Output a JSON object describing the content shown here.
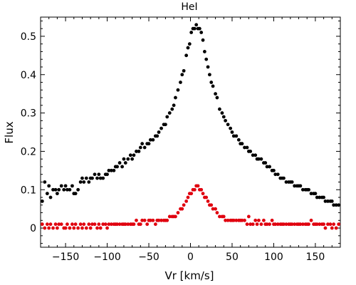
{
  "chart_data": {
    "type": "scatter",
    "title": "HeI",
    "xlabel": "Vr [km/s]",
    "ylabel": "Flux",
    "xlim": [
      -180,
      180
    ],
    "ylim": [
      -0.05,
      0.55
    ],
    "xticks": [
      -150,
      -100,
      -50,
      0,
      50,
      100,
      150
    ],
    "xtick_labels": [
      "−150",
      "−100",
      "−50",
      "0",
      "50",
      "100",
      "150"
    ],
    "yticks": [
      0,
      0.1,
      0.2,
      0.3,
      0.4,
      0.5
    ],
    "ytick_labels": [
      "0",
      "0.1",
      "0.2",
      "0.3",
      "0.4",
      "0.5"
    ],
    "grid": false,
    "series": [
      {
        "color": "#000000",
        "points": [
          [
            -178,
            0.07
          ],
          [
            -175,
            0.12
          ],
          [
            -172,
            0.09
          ],
          [
            -170,
            0.11
          ],
          [
            -168,
            0.08
          ],
          [
            -165,
            0.1
          ],
          [
            -162,
            0.1
          ],
          [
            -160,
            0.09
          ],
          [
            -158,
            0.1
          ],
          [
            -155,
            0.11
          ],
          [
            -152,
            0.1
          ],
          [
            -150,
            0.11
          ],
          [
            -148,
            0.1
          ],
          [
            -145,
            0.1
          ],
          [
            -142,
            0.11
          ],
          [
            -140,
            0.09
          ],
          [
            -138,
            0.09
          ],
          [
            -135,
            0.1
          ],
          [
            -132,
            0.12
          ],
          [
            -130,
            0.13
          ],
          [
            -128,
            0.12
          ],
          [
            -125,
            0.13
          ],
          [
            -122,
            0.12
          ],
          [
            -120,
            0.13
          ],
          [
            -118,
            0.13
          ],
          [
            -115,
            0.14
          ],
          [
            -112,
            0.13
          ],
          [
            -110,
            0.14
          ],
          [
            -108,
            0.13
          ],
          [
            -105,
            0.13
          ],
          [
            -102,
            0.14
          ],
          [
            -100,
            0.14
          ],
          [
            -98,
            0.15
          ],
          [
            -95,
            0.15
          ],
          [
            -92,
            0.15
          ],
          [
            -90,
            0.16
          ],
          [
            -88,
            0.16
          ],
          [
            -85,
            0.17
          ],
          [
            -82,
            0.16
          ],
          [
            -80,
            0.18
          ],
          [
            -78,
            0.17
          ],
          [
            -75,
            0.18
          ],
          [
            -72,
            0.19
          ],
          [
            -70,
            0.18
          ],
          [
            -68,
            0.19
          ],
          [
            -65,
            0.2
          ],
          [
            -62,
            0.2
          ],
          [
            -60,
            0.21
          ],
          [
            -58,
            0.22
          ],
          [
            -55,
            0.21
          ],
          [
            -52,
            0.22
          ],
          [
            -50,
            0.22
          ],
          [
            -48,
            0.23
          ],
          [
            -45,
            0.23
          ],
          [
            -42,
            0.24
          ],
          [
            -40,
            0.24
          ],
          [
            -38,
            0.25
          ],
          [
            -35,
            0.26
          ],
          [
            -32,
            0.27
          ],
          [
            -30,
            0.27
          ],
          [
            -28,
            0.29
          ],
          [
            -25,
            0.3
          ],
          [
            -22,
            0.31
          ],
          [
            -20,
            0.32
          ],
          [
            -18,
            0.34
          ],
          [
            -15,
            0.36
          ],
          [
            -12,
            0.38
          ],
          [
            -10,
            0.4
          ],
          [
            -8,
            0.41
          ],
          [
            -5,
            0.45
          ],
          [
            -3,
            0.47
          ],
          [
            -1,
            0.48
          ],
          [
            1,
            0.51
          ],
          [
            3,
            0.52
          ],
          [
            5,
            0.52
          ],
          [
            7,
            0.53
          ],
          [
            9,
            0.52
          ],
          [
            11,
            0.52
          ],
          [
            13,
            0.51
          ],
          [
            15,
            0.49
          ],
          [
            17,
            0.46
          ],
          [
            19,
            0.44
          ],
          [
            21,
            0.42
          ],
          [
            23,
            0.4
          ],
          [
            25,
            0.38
          ],
          [
            27,
            0.37
          ],
          [
            30,
            0.35
          ],
          [
            32,
            0.34
          ],
          [
            35,
            0.31
          ],
          [
            38,
            0.3
          ],
          [
            40,
            0.29
          ],
          [
            42,
            0.28
          ],
          [
            45,
            0.27
          ],
          [
            48,
            0.26
          ],
          [
            50,
            0.25
          ],
          [
            52,
            0.24
          ],
          [
            55,
            0.24
          ],
          [
            58,
            0.23
          ],
          [
            60,
            0.22
          ],
          [
            62,
            0.22
          ],
          [
            65,
            0.21
          ],
          [
            68,
            0.21
          ],
          [
            70,
            0.2
          ],
          [
            72,
            0.2
          ],
          [
            75,
            0.19
          ],
          [
            78,
            0.19
          ],
          [
            80,
            0.18
          ],
          [
            82,
            0.18
          ],
          [
            85,
            0.18
          ],
          [
            88,
            0.17
          ],
          [
            90,
            0.17
          ],
          [
            92,
            0.16
          ],
          [
            95,
            0.16
          ],
          [
            98,
            0.15
          ],
          [
            100,
            0.15
          ],
          [
            102,
            0.14
          ],
          [
            105,
            0.14
          ],
          [
            108,
            0.13
          ],
          [
            110,
            0.13
          ],
          [
            112,
            0.13
          ],
          [
            115,
            0.12
          ],
          [
            118,
            0.12
          ],
          [
            120,
            0.12
          ],
          [
            122,
            0.12
          ],
          [
            125,
            0.11
          ],
          [
            128,
            0.11
          ],
          [
            130,
            0.11
          ],
          [
            132,
            0.11
          ],
          [
            135,
            0.1
          ],
          [
            138,
            0.1
          ],
          [
            140,
            0.1
          ],
          [
            142,
            0.1
          ],
          [
            145,
            0.09
          ],
          [
            148,
            0.09
          ],
          [
            150,
            0.09
          ],
          [
            152,
            0.08
          ],
          [
            155,
            0.08
          ],
          [
            158,
            0.08
          ],
          [
            160,
            0.08
          ],
          [
            162,
            0.07
          ],
          [
            165,
            0.07
          ],
          [
            168,
            0.07
          ],
          [
            170,
            0.07
          ],
          [
            172,
            0.06
          ],
          [
            175,
            0.06
          ],
          [
            178,
            0.06
          ]
        ]
      },
      {
        "color": "#e0000f",
        "points": [
          [
            -178,
            0.01
          ],
          [
            -175,
            0.0
          ],
          [
            -172,
            0.01
          ],
          [
            -170,
            0.0
          ],
          [
            -168,
            0.01
          ],
          [
            -165,
            0.0
          ],
          [
            -162,
            0.01
          ],
          [
            -160,
            0.0
          ],
          [
            -158,
            0.01
          ],
          [
            -155,
            0.01
          ],
          [
            -152,
            0.0
          ],
          [
            -150,
            0.0
          ],
          [
            -148,
            0.01
          ],
          [
            -145,
            0.0
          ],
          [
            -142,
            0.01
          ],
          [
            -140,
            0.0
          ],
          [
            -138,
            0.01
          ],
          [
            -135,
            0.0
          ],
          [
            -132,
            0.01
          ],
          [
            -130,
            0.0
          ],
          [
            -128,
            0.01
          ],
          [
            -125,
            0.0
          ],
          [
            -122,
            0.01
          ],
          [
            -120,
            0.0
          ],
          [
            -118,
            0.01
          ],
          [
            -115,
            0.01
          ],
          [
            -112,
            0.0
          ],
          [
            -110,
            0.01
          ],
          [
            -108,
            0.0
          ],
          [
            -105,
            0.01
          ],
          [
            -102,
            0.01
          ],
          [
            -100,
            0.0
          ],
          [
            -98,
            0.01
          ],
          [
            -95,
            0.01
          ],
          [
            -92,
            0.01
          ],
          [
            -90,
            0.01
          ],
          [
            -88,
            0.01
          ],
          [
            -85,
            0.01
          ],
          [
            -82,
            0.01
          ],
          [
            -80,
            0.01
          ],
          [
            -78,
            0.01
          ],
          [
            -75,
            0.01
          ],
          [
            -72,
            0.01
          ],
          [
            -70,
            0.01
          ],
          [
            -68,
            0.01
          ],
          [
            -65,
            0.02
          ],
          [
            -62,
            0.01
          ],
          [
            -60,
            0.01
          ],
          [
            -58,
            0.02
          ],
          [
            -55,
            0.02
          ],
          [
            -52,
            0.01
          ],
          [
            -50,
            0.02
          ],
          [
            -48,
            0.02
          ],
          [
            -45,
            0.02
          ],
          [
            -42,
            0.01
          ],
          [
            -40,
            0.02
          ],
          [
            -38,
            0.02
          ],
          [
            -35,
            0.02
          ],
          [
            -32,
            0.02
          ],
          [
            -30,
            0.02
          ],
          [
            -28,
            0.02
          ],
          [
            -25,
            0.03
          ],
          [
            -22,
            0.03
          ],
          [
            -20,
            0.03
          ],
          [
            -18,
            0.03
          ],
          [
            -15,
            0.04
          ],
          [
            -12,
            0.05
          ],
          [
            -10,
            0.05
          ],
          [
            -8,
            0.06
          ],
          [
            -5,
            0.07
          ],
          [
            -3,
            0.08
          ],
          [
            -1,
            0.09
          ],
          [
            1,
            0.09
          ],
          [
            3,
            0.1
          ],
          [
            5,
            0.1
          ],
          [
            7,
            0.11
          ],
          [
            9,
            0.11
          ],
          [
            11,
            0.1
          ],
          [
            13,
            0.1
          ],
          [
            15,
            0.09
          ],
          [
            17,
            0.08
          ],
          [
            19,
            0.08
          ],
          [
            21,
            0.07
          ],
          [
            23,
            0.06
          ],
          [
            25,
            0.06
          ],
          [
            27,
            0.05
          ],
          [
            30,
            0.05
          ],
          [
            32,
            0.04
          ],
          [
            35,
            0.03
          ],
          [
            38,
            0.03
          ],
          [
            40,
            0.03
          ],
          [
            42,
            0.02
          ],
          [
            45,
            0.02
          ],
          [
            48,
            0.02
          ],
          [
            50,
            0.02
          ],
          [
            52,
            0.02
          ],
          [
            55,
            0.02
          ],
          [
            58,
            0.02
          ],
          [
            60,
            0.02
          ],
          [
            62,
            0.02
          ],
          [
            65,
            0.02
          ],
          [
            68,
            0.01
          ],
          [
            70,
            0.03
          ],
          [
            72,
            0.01
          ],
          [
            75,
            0.01
          ],
          [
            78,
            0.02
          ],
          [
            80,
            0.01
          ],
          [
            82,
            0.02
          ],
          [
            85,
            0.01
          ],
          [
            88,
            0.02
          ],
          [
            90,
            0.01
          ],
          [
            92,
            0.01
          ],
          [
            95,
            0.01
          ],
          [
            98,
            0.02
          ],
          [
            100,
            0.01
          ],
          [
            102,
            0.01
          ],
          [
            105,
            0.01
          ],
          [
            108,
            0.01
          ],
          [
            110,
            0.01
          ],
          [
            112,
            0.01
          ],
          [
            115,
            0.01
          ],
          [
            118,
            0.01
          ],
          [
            120,
            0.01
          ],
          [
            122,
            0.01
          ],
          [
            125,
            0.01
          ],
          [
            128,
            0.01
          ],
          [
            130,
            0.01
          ],
          [
            132,
            0.01
          ],
          [
            135,
            0.01
          ],
          [
            138,
            0.01
          ],
          [
            140,
            0.01
          ],
          [
            142,
            0.01
          ],
          [
            145,
            0.02
          ],
          [
            148,
            0.01
          ],
          [
            150,
            0.01
          ],
          [
            152,
            0.01
          ],
          [
            155,
            0.01
          ],
          [
            158,
            0.01
          ],
          [
            160,
            0.01
          ],
          [
            162,
            0.0
          ],
          [
            165,
            0.01
          ],
          [
            168,
            0.01
          ],
          [
            170,
            0.0
          ],
          [
            172,
            0.01
          ],
          [
            175,
            0.0
          ],
          [
            178,
            0.01
          ]
        ]
      }
    ]
  }
}
